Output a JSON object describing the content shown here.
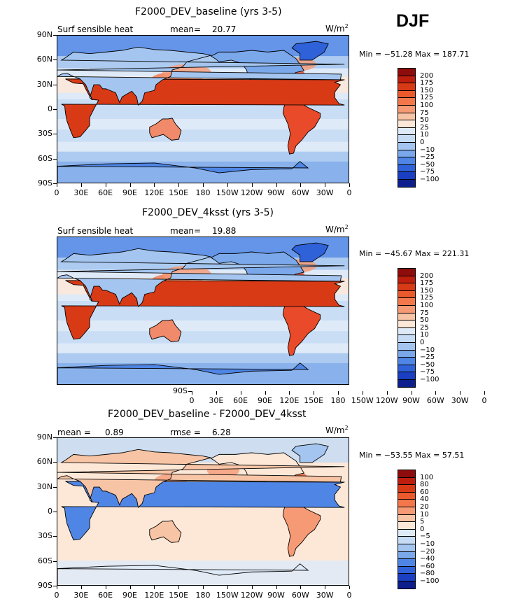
{
  "season": "DJF",
  "x_ticks": [
    "0",
    "30E",
    "60E",
    "90E",
    "120E",
    "150E",
    "180",
    "150W",
    "120W",
    "90W",
    "60W",
    "30W",
    "0"
  ],
  "y_ticks": [
    "90N",
    "60N",
    "30N",
    "0",
    "30S",
    "60S",
    "90S"
  ],
  "panels": [
    {
      "title": "F2000_DEV_baseline (yrs 3-5)",
      "left_label": "Surf sensible heat",
      "stat_label": "mean=",
      "stat_value": "20.77",
      "units": "W/m",
      "units_sup": "2",
      "minmax": "Min = −51.28  Max = 187.71",
      "cbar_labels": [
        "200",
        "175",
        "150",
        "125",
        "100",
        "75",
        "50",
        "25",
        "10",
        "0",
        "−10",
        "−25",
        "−50",
        "−75",
        "−100"
      ],
      "cbar_colors": [
        "#8e0c0c",
        "#bd1e0e",
        "#d93a16",
        "#ea5a2c",
        "#f3774a",
        "#f59a75",
        "#f7c4a5",
        "#fde8d8",
        "#dfeaf8",
        "#c6dcf5",
        "#a4c5ef",
        "#7aa8ea",
        "#4f86e5",
        "#2f61d9",
        "#1a3fc2",
        "#0d1f8c"
      ]
    },
    {
      "title": "F2000_DEV_4ksst (yrs 3-5)",
      "left_label": "Surf sensible heat",
      "stat_label": "mean=",
      "stat_value": "19.88",
      "units": "W/m",
      "units_sup": "2",
      "minmax": "Min = −45.67  Max = 221.31",
      "cbar_labels": [
        "200",
        "175",
        "150",
        "125",
        "100",
        "75",
        "50",
        "25",
        "10",
        "0",
        "−10",
        "−25",
        "−50",
        "−75",
        "−100"
      ],
      "cbar_colors": [
        "#8e0c0c",
        "#bd1e0e",
        "#d93a16",
        "#ea5a2c",
        "#f3774a",
        "#f59a75",
        "#f7c4a5",
        "#fde8d8",
        "#dfeaf8",
        "#c6dcf5",
        "#a4c5ef",
        "#7aa8ea",
        "#4f86e5",
        "#2f61d9",
        "#1a3fc2",
        "#0d1f8c"
      ]
    },
    {
      "title": "F2000_DEV_baseline - F2000_DEV_4ksst",
      "left_label": "mean =",
      "left_value": "0.89",
      "stat_label": "rmse =",
      "stat_value": "6.28",
      "units": "W/m",
      "units_sup": "2",
      "minmax": "Min = −53.55  Max =  57.51",
      "cbar_labels": [
        "100",
        "80",
        "60",
        "40",
        "20",
        "10",
        "5",
        "0",
        "−5",
        "−10",
        "−20",
        "−40",
        "−60",
        "−80",
        "−100"
      ],
      "cbar_colors": [
        "#8e0c0c",
        "#bd1e0e",
        "#d93a16",
        "#ea5a2c",
        "#f3774a",
        "#f59a75",
        "#f7c4a5",
        "#fde8d8",
        "#dfeaf8",
        "#c6dcf5",
        "#a4c5ef",
        "#7aa8ea",
        "#4f86e5",
        "#2f61d9",
        "#1a3fc2",
        "#0d1f8c"
      ]
    }
  ]
}
